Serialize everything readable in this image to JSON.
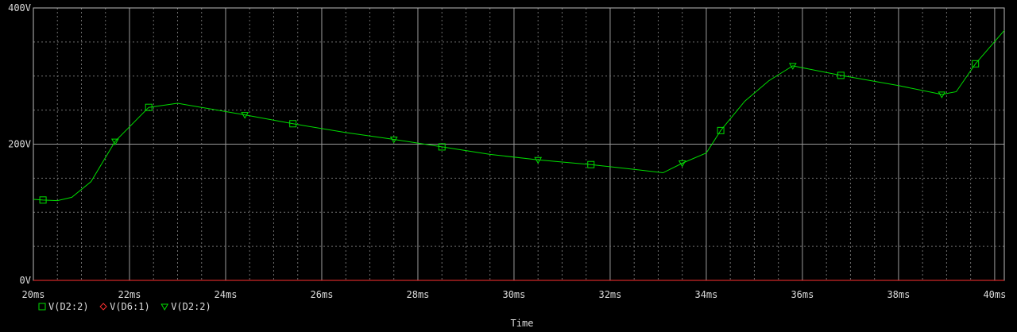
{
  "chart_data": {
    "type": "line",
    "xlabel": "Time",
    "ylabel": "",
    "xlim": [
      20,
      40.2
    ],
    "ylim": [
      0,
      400
    ],
    "x_ticks": [
      {
        "value": 20,
        "label": "20ms"
      },
      {
        "value": 22,
        "label": "22ms"
      },
      {
        "value": 24,
        "label": "24ms"
      },
      {
        "value": 26,
        "label": "26ms"
      },
      {
        "value": 28,
        "label": "28ms"
      },
      {
        "value": 30,
        "label": "30ms"
      },
      {
        "value": 32,
        "label": "32ms"
      },
      {
        "value": 34,
        "label": "34ms"
      },
      {
        "value": 36,
        "label": "36ms"
      },
      {
        "value": 38,
        "label": "38ms"
      },
      {
        "value": 40,
        "label": "40ms"
      }
    ],
    "y_ticks": [
      {
        "value": 0,
        "label": "0V"
      },
      {
        "value": 200,
        "label": "200V"
      },
      {
        "value": 400,
        "label": "400V"
      }
    ],
    "grid": true,
    "legend_position": "bottom-left",
    "series": [
      {
        "name": "V(D2:2)",
        "marker": "square",
        "color": "#00dd00",
        "x": [
          20.0,
          20.2,
          20.5,
          20.8,
          21.2,
          21.7,
          22.4,
          23.0,
          24.4,
          25.4,
          26.5,
          27.5,
          28.5,
          29.5,
          30.5,
          31.6,
          32.5,
          33.1,
          33.5,
          34.0,
          34.3,
          34.8,
          35.3,
          35.8,
          36.8,
          38.0,
          38.9,
          39.2,
          39.6,
          40.2
        ],
        "y": [
          119,
          118,
          117,
          122,
          145,
          204,
          254,
          260,
          243,
          230,
          217,
          207,
          196,
          185,
          177,
          170,
          163,
          158,
          172,
          187,
          220,
          263,
          293,
          315,
          301,
          286,
          273,
          277,
          318,
          367
        ],
        "marker_x": [
          20.2,
          22.4,
          25.4,
          28.5,
          31.6,
          34.3,
          36.8,
          39.6
        ]
      },
      {
        "name": "V(D6:1)",
        "marker": "diamond",
        "color": "#ff3030",
        "x": [
          20,
          40.2
        ],
        "y": [
          0,
          0
        ],
        "marker_x": []
      },
      {
        "name": "V(D2:2)",
        "marker": "triangle",
        "color": "#00dd00",
        "x": [],
        "y": [],
        "marker_x": [
          21.7,
          24.4,
          27.5,
          30.5,
          33.5,
          35.8,
          38.9
        ]
      }
    ]
  }
}
